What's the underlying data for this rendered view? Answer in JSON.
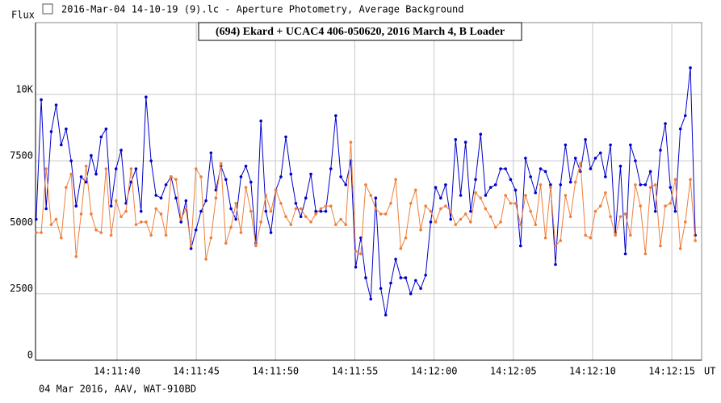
{
  "window_title": "2016-Mar-04 14-10-19 (9).lc - Aperture Photometry, Average Background",
  "chart_data": {
    "type": "line",
    "title": "(694) Ekard + UCAC4 406-050620, 2016 March 4, B Loader",
    "y_label": "Flux",
    "x_label": "UT",
    "footer": "04 Mar 2016, AAV, WAT-910BD",
    "xlim": [
      34.86,
      76.88
    ],
    "ylim": [
      0,
      12700
    ],
    "xticks": [
      {
        "value": 40,
        "label": "14:11:40"
      },
      {
        "value": 45,
        "label": "14:11:45"
      },
      {
        "value": 50,
        "label": "14:11:50"
      },
      {
        "value": 55,
        "label": "14:11:55"
      },
      {
        "value": 60,
        "label": "14:12:00"
      },
      {
        "value": 65,
        "label": "14:12:05"
      },
      {
        "value": 70,
        "label": "14:12:10"
      },
      {
        "value": 75,
        "label": "14:12:15"
      }
    ],
    "yticks": [
      0,
      2500,
      5000,
      7500,
      {
        "value": 10000,
        "label": "10K"
      }
    ],
    "grid": true,
    "x": [
      34.9,
      35.22,
      35.53,
      35.85,
      36.16,
      36.48,
      36.79,
      37.11,
      37.42,
      37.74,
      38.05,
      38.37,
      38.68,
      39.0,
      39.31,
      39.63,
      39.94,
      40.26,
      40.57,
      40.89,
      41.2,
      41.52,
      41.83,
      42.15,
      42.46,
      42.78,
      43.09,
      43.41,
      43.72,
      44.04,
      44.35,
      44.67,
      44.98,
      45.3,
      45.61,
      45.93,
      46.24,
      46.56,
      46.87,
      47.19,
      47.5,
      47.82,
      48.13,
      48.45,
      48.76,
      49.08,
      49.39,
      49.71,
      50.02,
      50.34,
      50.65,
      50.97,
      51.28,
      51.6,
      51.91,
      52.23,
      52.54,
      52.86,
      53.17,
      53.49,
      53.8,
      54.12,
      54.43,
      54.75,
      55.06,
      55.38,
      55.69,
      56.01,
      56.32,
      56.64,
      56.95,
      57.27,
      57.58,
      57.9,
      58.21,
      58.53,
      58.84,
      59.16,
      59.47,
      59.79,
      60.1,
      60.42,
      60.73,
      61.05,
      61.36,
      61.68,
      61.99,
      62.31,
      62.62,
      62.94,
      63.25,
      63.57,
      63.88,
      64.2,
      64.51,
      64.83,
      65.14,
      65.46,
      65.77,
      66.09,
      66.4,
      66.72,
      67.03,
      67.35,
      67.66,
      67.98,
      68.29,
      68.61,
      68.92,
      69.24,
      69.55,
      69.87,
      70.18,
      70.5,
      70.81,
      71.13,
      71.44,
      71.76,
      72.07,
      72.39,
      72.7,
      73.02,
      73.33,
      73.65,
      73.96,
      74.28,
      74.59,
      74.91,
      75.22,
      75.54,
      75.85,
      76.17,
      76.48
    ],
    "series": [
      {
        "color": "#0000cc",
        "values": [
          5300,
          9800,
          5700,
          8600,
          9600,
          8100,
          8700,
          7500,
          5800,
          6900,
          6700,
          7700,
          7000,
          8400,
          8700,
          5800,
          7200,
          7900,
          5900,
          6700,
          7200,
          5600,
          9900,
          7500,
          6200,
          6100,
          6600,
          6900,
          6100,
          5200,
          6000,
          4200,
          4900,
          5600,
          6000,
          7800,
          6400,
          7300,
          6800,
          5700,
          5300,
          6900,
          7300,
          6700,
          4400,
          9000,
          5600,
          4800,
          6400,
          6900,
          8400,
          7000,
          5900,
          5400,
          6100,
          7000,
          5600,
          5600,
          5600,
          7200,
          9200,
          6900,
          6600,
          7500,
          3500,
          4600,
          3100,
          2300,
          6100,
          2700,
          1700,
          2900,
          3800,
          3100,
          3100,
          2500,
          3000,
          2700,
          3200,
          5200,
          6500,
          6100,
          6600,
          5300,
          8300,
          6200,
          8200,
          5600,
          6800,
          8500,
          6200,
          6500,
          6600,
          7200,
          7200,
          6800,
          6400,
          4300,
          7600,
          6900,
          6300,
          7200,
          7100,
          6600,
          3600,
          6600,
          8100,
          6700,
          7600,
          7100,
          8300,
          7200,
          7600,
          7800,
          6900,
          8100,
          4800,
          7300,
          4000,
          8100,
          7500,
          6600,
          6600,
          7100,
          5600,
          7900,
          8900,
          6500,
          5600,
          8700,
          9200,
          11000,
          4700
        ]
      },
      {
        "color": "#ee7f3b",
        "values": [
          4800,
          4800,
          7200,
          5100,
          5300,
          4600,
          6500,
          7000,
          3900,
          5500,
          7300,
          5500,
          4900,
          4800,
          7200,
          4700,
          6000,
          5400,
          5600,
          7200,
          5100,
          5200,
          5200,
          4700,
          5700,
          5500,
          4700,
          6900,
          6800,
          5300,
          5700,
          4300,
          7200,
          6900,
          3800,
          4600,
          6100,
          7400,
          4400,
          5000,
          5900,
          4800,
          6500,
          5600,
          4300,
          5200,
          6200,
          5600,
          6400,
          5900,
          5400,
          5100,
          5700,
          5700,
          5400,
          5200,
          5500,
          5700,
          5800,
          5800,
          5100,
          5300,
          5100,
          8200,
          4100,
          4000,
          6600,
          6200,
          5700,
          5500,
          5500,
          5900,
          6800,
          4200,
          4600,
          5900,
          6400,
          4900,
          5800,
          5600,
          5200,
          5700,
          5800,
          5600,
          5100,
          5300,
          5500,
          5200,
          6300,
          6100,
          5700,
          5400,
          5000,
          5200,
          6200,
          5900,
          5900,
          5100,
          6200,
          5600,
          5100,
          6600,
          4600,
          6500,
          4300,
          4500,
          6200,
          5400,
          6700,
          7400,
          4700,
          4600,
          5600,
          5800,
          6300,
          5400,
          4700,
          5400,
          5500,
          4700,
          6600,
          5800,
          4000,
          6500,
          6600,
          4300,
          5800,
          5900,
          6800,
          4200,
          5200,
          6800,
          4500
        ]
      }
    ]
  }
}
